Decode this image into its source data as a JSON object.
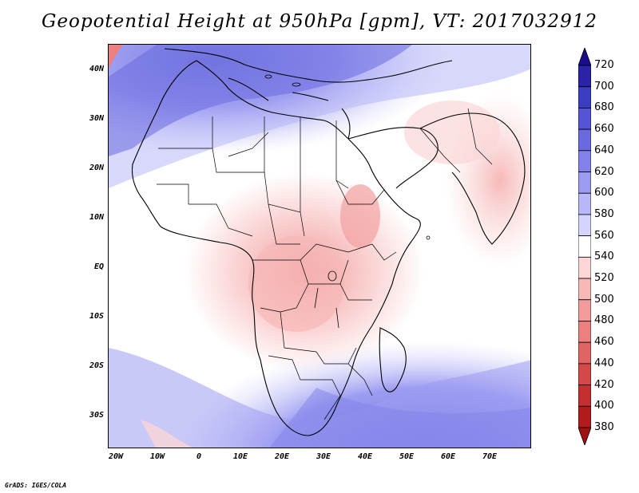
{
  "title": "Geopotential Height at 950hPa [gpm], VT: 2017032912",
  "credit": "GrADS: IGES/COLA",
  "lat_labels": [
    "40N",
    "30N",
    "20N",
    "10N",
    "EQ",
    "10S",
    "20S",
    "30S"
  ],
  "lon_labels": [
    "20W",
    "10W",
    "0",
    "10E",
    "20E",
    "30E",
    "40E",
    "50E",
    "60E",
    "70E"
  ],
  "colorbar": {
    "levels": [
      "720",
      "700",
      "680",
      "660",
      "640",
      "620",
      "600",
      "580",
      "560",
      "540",
      "520",
      "500",
      "480",
      "460",
      "440",
      "420",
      "400",
      "380"
    ],
    "colors": [
      "#1a0c8c",
      "#2a23a8",
      "#3a3cc4",
      "#5553d6",
      "#6a6ae0",
      "#8282ea",
      "#9c9cf2",
      "#b8b8f8",
      "#d4d4fc",
      "#ffffff",
      "#fbd6d6",
      "#f7b8b8",
      "#f29c9c",
      "#eb8080",
      "#e06464",
      "#d44848",
      "#c43030",
      "#b01c1c",
      "#a01010"
    ]
  }
}
